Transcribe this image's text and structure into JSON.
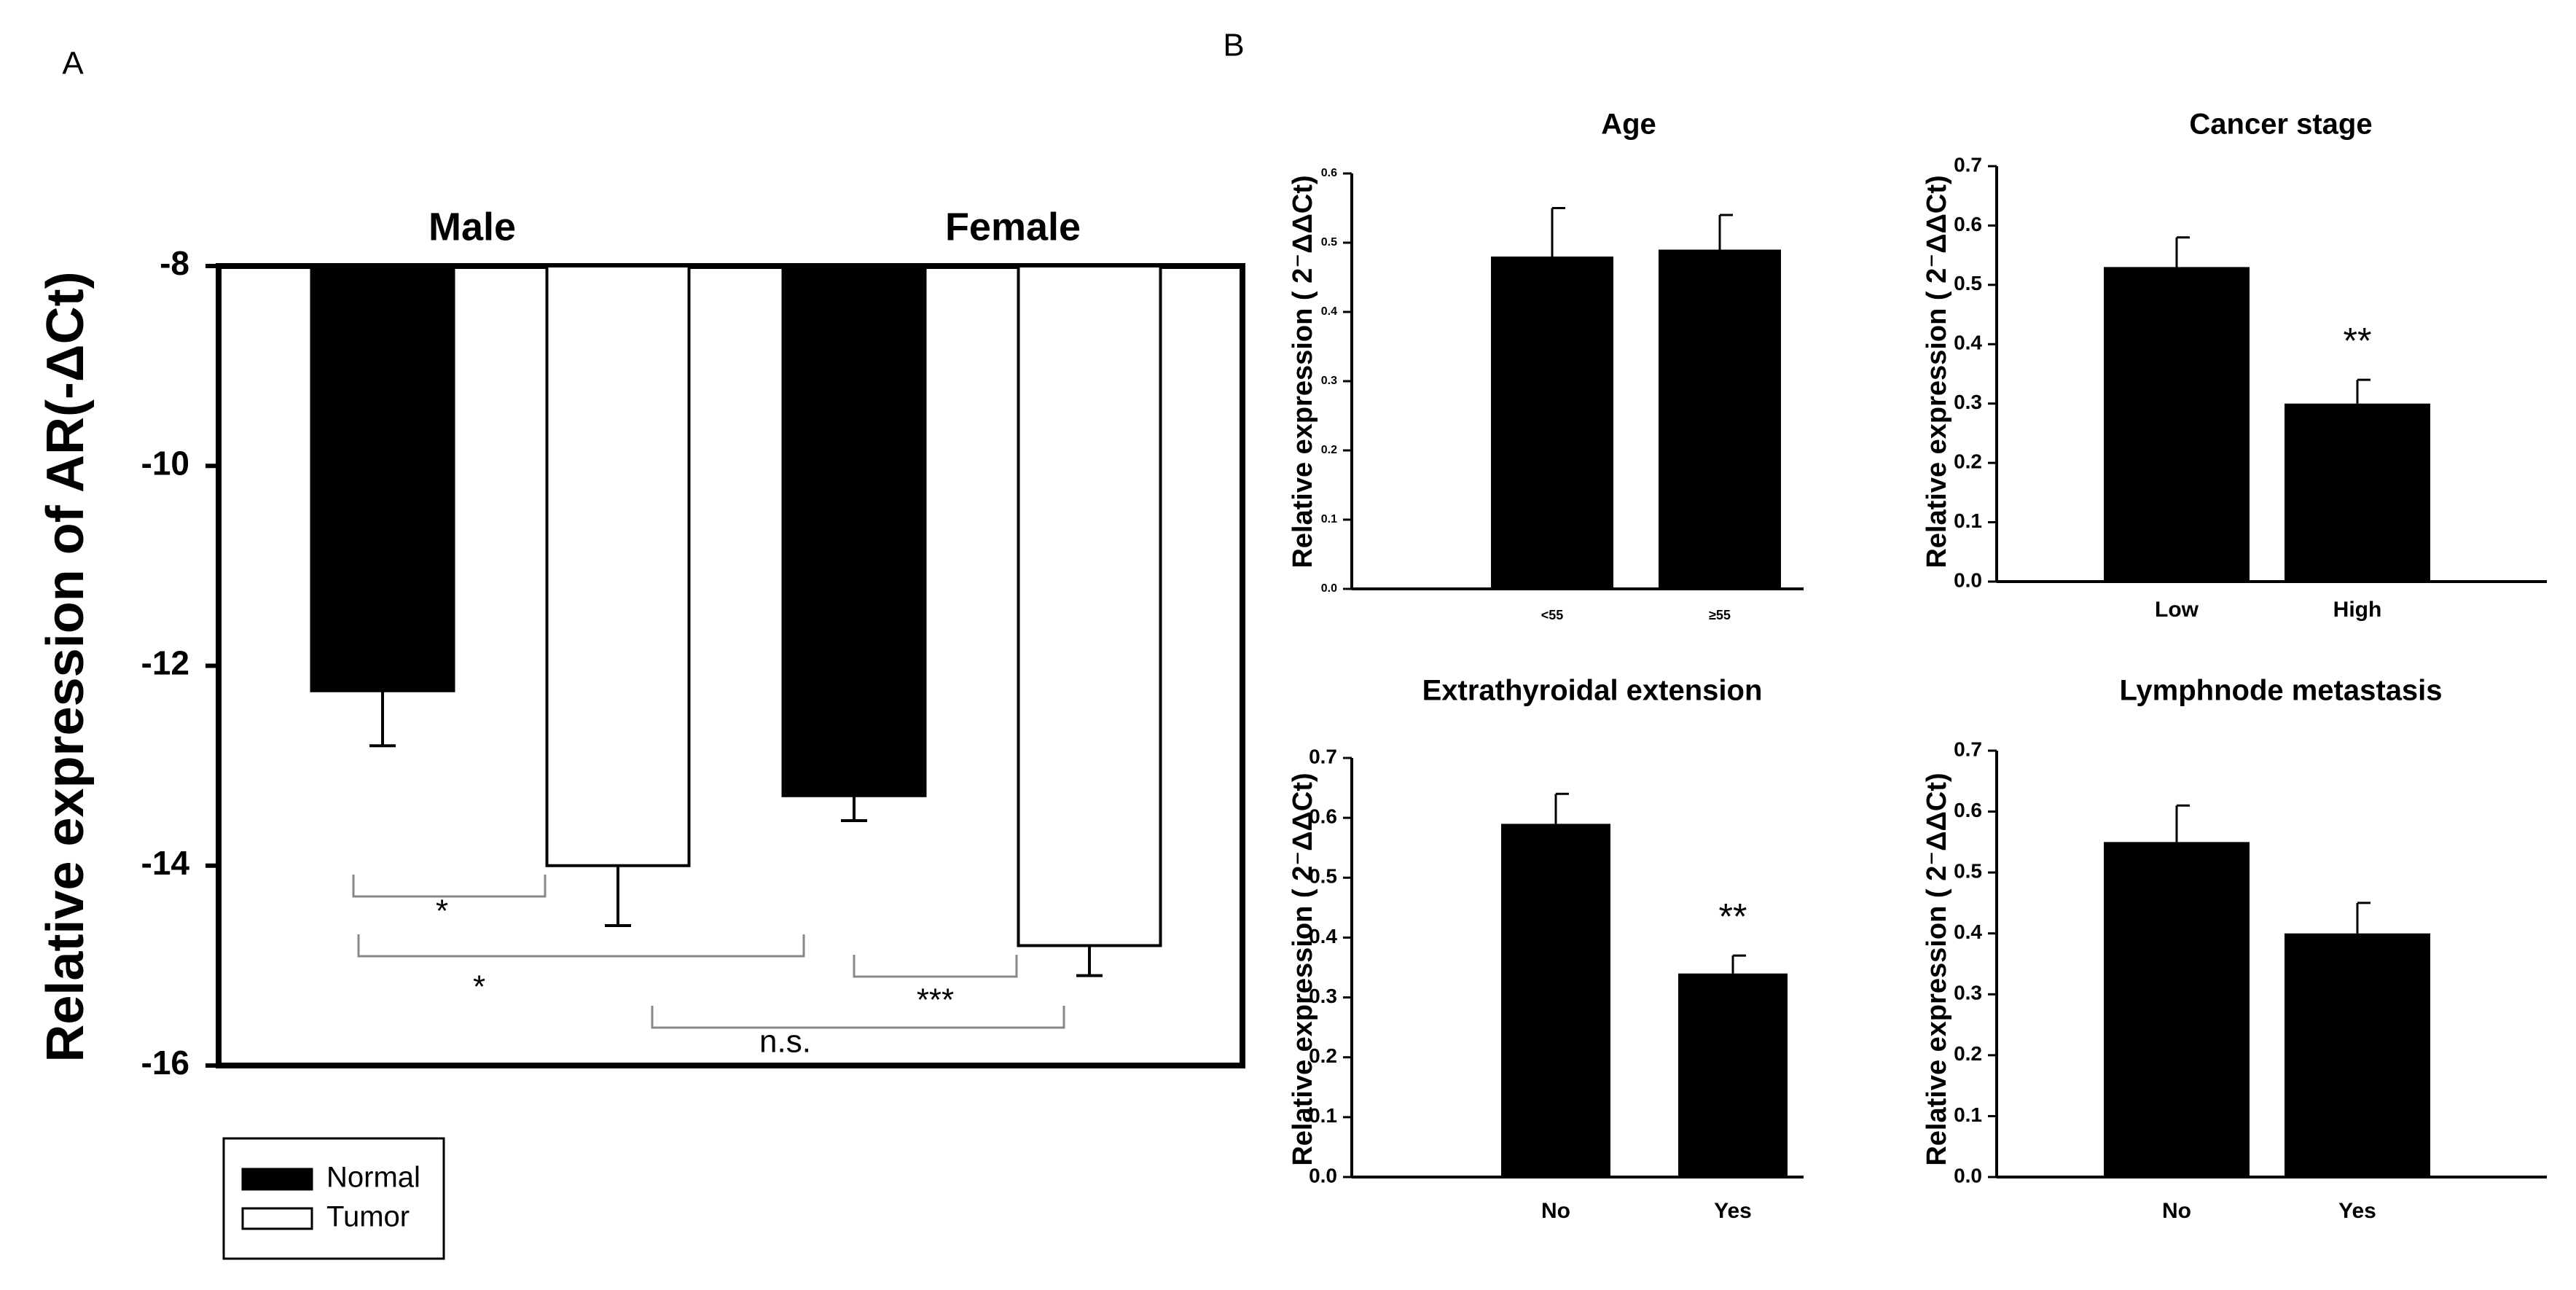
{
  "colors": {
    "normal": "#000000",
    "tumor": "#ffffff",
    "stroke": "#000000"
  },
  "chart_data": [
    {
      "id": "A",
      "panel_label": "A",
      "type": "bar",
      "title": "",
      "ylabel": "Relative expression of AR(-ΔCt)",
      "xlabel": "",
      "ylim": [
        -16,
        -8
      ],
      "yticks": [
        "-8",
        "-10",
        "-12",
        "-14",
        "-16"
      ],
      "baseline": -8,
      "groups": [
        "Male",
        "Female"
      ],
      "series": [
        {
          "name": "Normal",
          "color": "#000000",
          "values": [
            -12.25,
            -13.3
          ],
          "errors": [
            0.55,
            0.25
          ]
        },
        {
          "name": "Tumor",
          "color": "#ffffff",
          "values": [
            -14.0,
            -14.8
          ],
          "errors": [
            0.6,
            0.3
          ]
        }
      ],
      "legend": {
        "position": "bottom-left",
        "entries": [
          "Normal",
          "Tumor"
        ]
      },
      "significance": [
        {
          "from": "Male Normal",
          "to": "Male Tumor",
          "label": "*"
        },
        {
          "from": "Male Normal",
          "to": "Female Normal",
          "label": "*"
        },
        {
          "from": "Female Normal",
          "to": "Female Tumor",
          "label": "***"
        },
        {
          "from": "Male Tumor",
          "to": "Female Tumor",
          "label": "n.s."
        }
      ]
    },
    {
      "id": "B1",
      "panel_label": "B",
      "type": "bar",
      "title": "Age",
      "ylabel": "Relative expression ( 2⁻ΔΔCt)",
      "xlabel": "",
      "ylim": [
        0,
        0.6
      ],
      "yticks": [
        "0.0",
        "0.1",
        "0.2",
        "0.3",
        "0.4",
        "0.5",
        "0.6"
      ],
      "categories": [
        "<55",
        "≥55"
      ],
      "values": [
        0.48,
        0.49
      ],
      "errors": [
        0.07,
        0.05
      ],
      "annotations": [
        "",
        ""
      ]
    },
    {
      "id": "B2",
      "type": "bar",
      "title": "Cancer stage",
      "ylabel": "Relative expression ( 2⁻ΔΔCt)",
      "xlabel": "",
      "ylim": [
        0,
        0.7
      ],
      "yticks": [
        "0.0",
        "0.1",
        "0.2",
        "0.3",
        "0.4",
        "0.5",
        "0.6",
        "0.7"
      ],
      "categories": [
        "Low",
        "High"
      ],
      "values": [
        0.53,
        0.3
      ],
      "errors": [
        0.05,
        0.04
      ],
      "annotations": [
        "",
        "**"
      ]
    },
    {
      "id": "B3",
      "type": "bar",
      "title": "Extrathyroidal extension",
      "ylabel": "Relative expression ( 2⁻ΔΔCt)",
      "xlabel": "",
      "ylim": [
        0,
        0.7
      ],
      "yticks": [
        "0.0",
        "0.1",
        "0.2",
        "0.3",
        "0.4",
        "0.5",
        "0.6",
        "0.7"
      ],
      "categories": [
        "No",
        "Yes"
      ],
      "values": [
        0.59,
        0.34
      ],
      "errors": [
        0.05,
        0.03
      ],
      "annotations": [
        "",
        "**"
      ]
    },
    {
      "id": "B4",
      "type": "bar",
      "title": "Lymphnode metastasis",
      "ylabel": "Relative expression ( 2⁻ΔΔCt)",
      "xlabel": "",
      "ylim": [
        0,
        0.7
      ],
      "yticks": [
        "0.0",
        "0.1",
        "0.2",
        "0.3",
        "0.4",
        "0.5",
        "0.6",
        "0.7"
      ],
      "categories": [
        "No",
        "Yes"
      ],
      "values": [
        0.55,
        0.4
      ],
      "errors": [
        0.06,
        0.05
      ],
      "annotations": [
        "",
        ""
      ]
    }
  ]
}
